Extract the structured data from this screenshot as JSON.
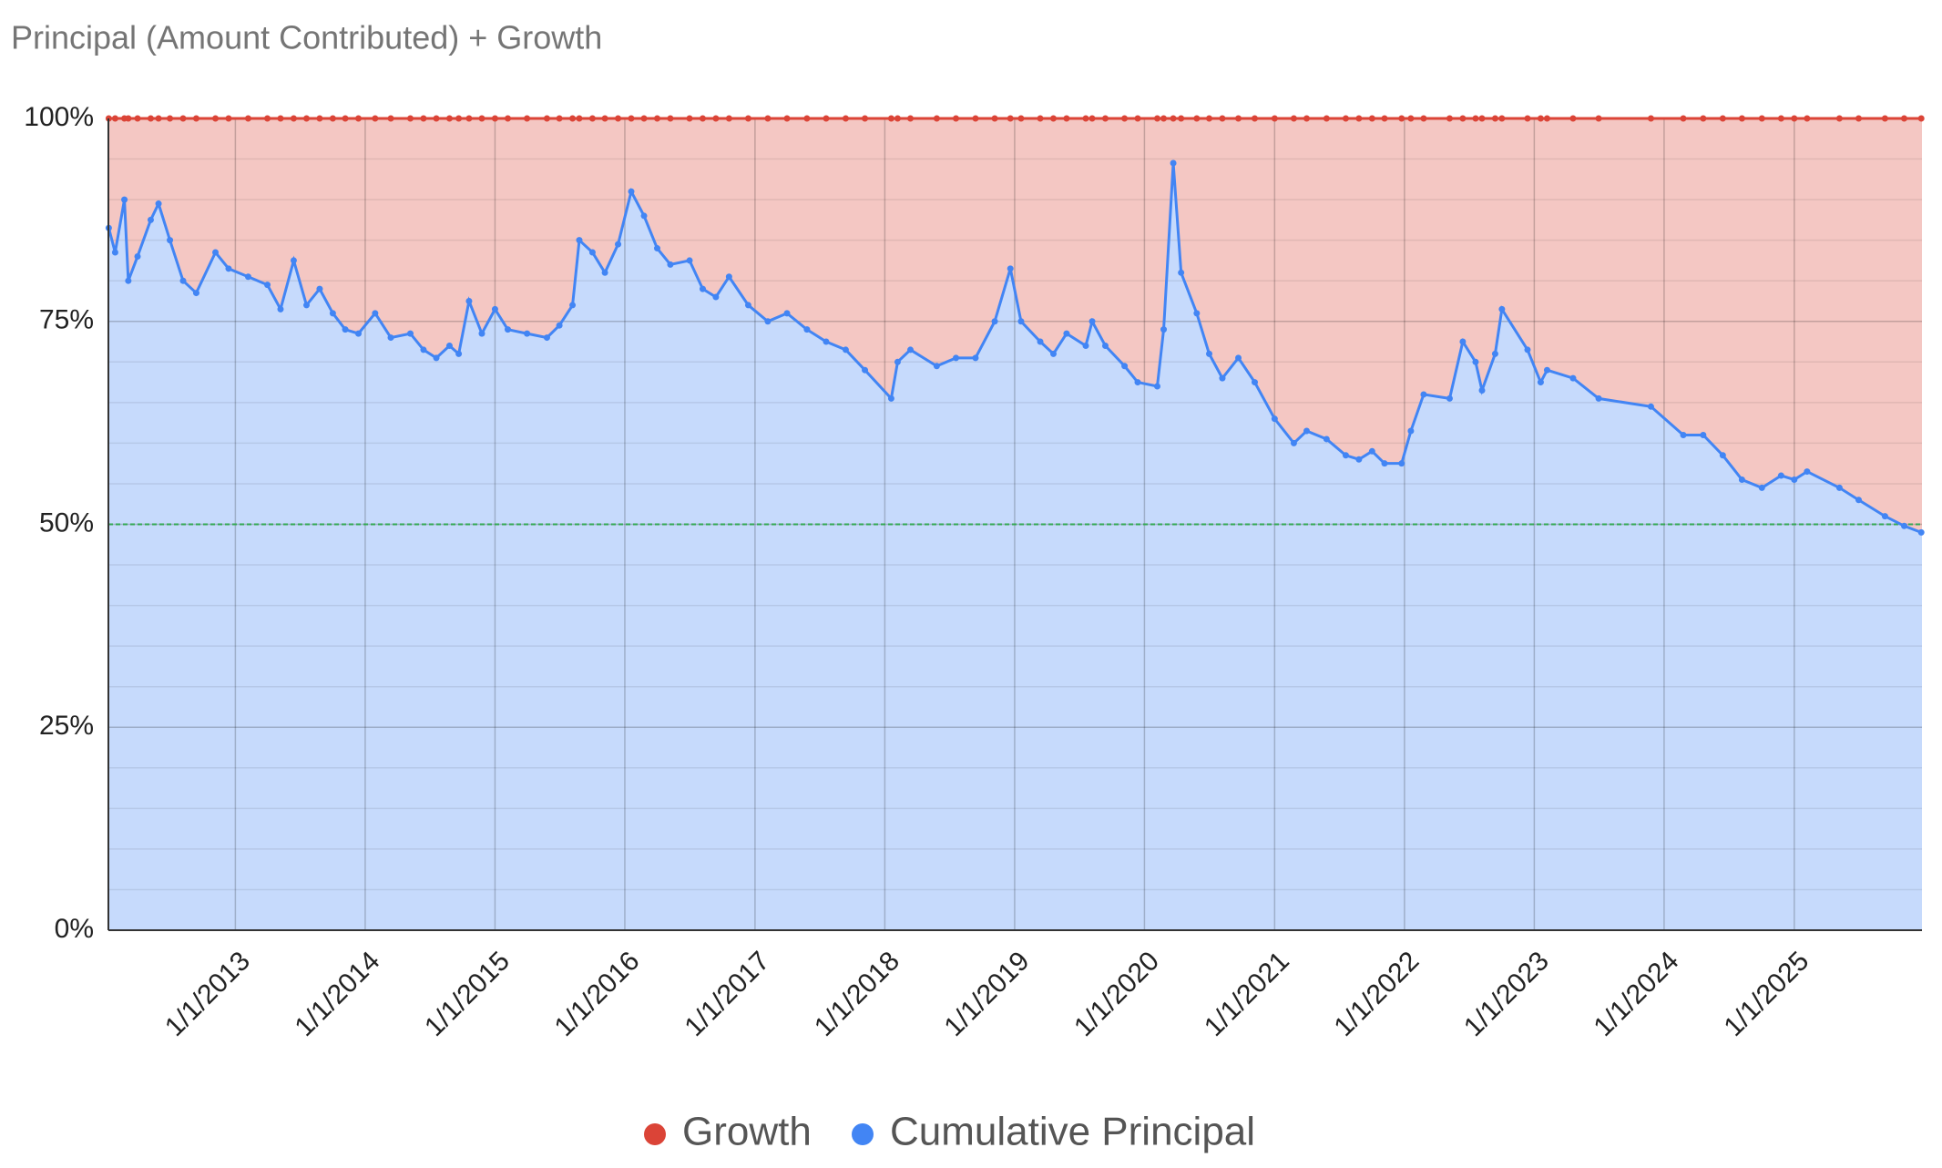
{
  "chart_data": {
    "type": "area",
    "stacked": "percent",
    "title": "Principal (Amount Contributed) + Growth",
    "x": [
      "2012-01-11",
      "2012-01-29",
      "2012-02-24",
      "2012-03-06",
      "2012-04-01",
      "2012-05-08",
      "2012-05-30",
      "2012-07-01",
      "2012-08-07",
      "2012-09-13",
      "2012-11-06",
      "2012-12-13",
      "2013-02-06",
      "2013-04-01",
      "2013-05-08",
      "2013-06-14",
      "2013-07-20",
      "2013-08-26",
      "2013-10-02",
      "2013-11-06",
      "2013-12-13",
      "2014-01-29",
      "2014-03-14",
      "2014-05-08",
      "2014-06-14",
      "2014-07-20",
      "2014-08-26",
      "2014-09-21",
      "2014-10-20",
      "2014-11-25",
      "2015-01-01",
      "2015-02-06",
      "2015-04-01",
      "2015-05-27",
      "2015-07-01",
      "2015-08-07",
      "2015-08-26",
      "2015-10-02",
      "2015-11-06",
      "2015-12-13",
      "2016-01-19",
      "2016-02-24",
      "2016-04-01",
      "2016-05-08",
      "2016-07-01",
      "2016-08-07",
      "2016-09-13",
      "2016-10-20",
      "2016-12-13",
      "2017-02-06",
      "2017-04-01",
      "2017-05-27",
      "2017-07-20",
      "2017-09-13",
      "2017-11-06",
      "2018-01-19",
      "2018-02-06",
      "2018-03-14",
      "2018-05-27",
      "2018-07-20",
      "2018-09-13",
      "2018-11-06",
      "2018-12-20",
      "2019-01-19",
      "2019-03-14",
      "2019-04-20",
      "2019-05-27",
      "2019-07-20",
      "2019-08-07",
      "2019-09-13",
      "2019-11-06",
      "2019-12-13",
      "2020-02-06",
      "2020-02-24",
      "2020-03-22",
      "2020-04-13",
      "2020-05-27",
      "2020-07-01",
      "2020-08-07",
      "2020-09-21",
      "2020-11-06",
      "2021-01-01",
      "2021-02-24",
      "2021-04-01",
      "2021-05-27",
      "2021-07-20",
      "2021-08-26",
      "2021-10-02",
      "2021-11-06",
      "2021-12-24",
      "2022-01-19",
      "2022-02-24",
      "2022-05-08",
      "2022-06-14",
      "2022-07-20",
      "2022-08-07",
      "2022-09-13",
      "2022-10-02",
      "2022-12-13",
      "2023-01-19",
      "2023-02-06",
      "2023-04-20",
      "2023-07-01",
      "2023-11-25",
      "2024-02-24",
      "2024-04-20",
      "2024-06-14",
      "2024-08-07",
      "2024-10-02",
      "2024-11-25",
      "2025-01-01",
      "2025-02-06",
      "2025-05-08",
      "2025-07-01",
      "2025-09-13",
      "2025-11-06",
      "2025-12-24"
    ],
    "series": [
      {
        "name": "Growth",
        "color": "#db4437",
        "fill": "#f4c7c3",
        "values": [
          13.5,
          16.5,
          10,
          20,
          17,
          12.5,
          10.5,
          15,
          20,
          21.5,
          16.5,
          18.5,
          19.5,
          20.5,
          23.5,
          17.5,
          23,
          21,
          24,
          26,
          26.5,
          24,
          27,
          26.5,
          28.5,
          29.5,
          28,
          29,
          22.5,
          26.5,
          23.5,
          26,
          26.5,
          27,
          25.5,
          23,
          15,
          16.5,
          19,
          15.5,
          9,
          12,
          16,
          18,
          17.5,
          21,
          22,
          19.5,
          23,
          25,
          24,
          26,
          27.5,
          28.5,
          31,
          34.5,
          30,
          28.5,
          30.5,
          29.5,
          29.5,
          25,
          18.5,
          25,
          27.5,
          29,
          26.5,
          28,
          25,
          28,
          30.5,
          32.5,
          33,
          26,
          5.5,
          19,
          24,
          29,
          32,
          29.5,
          32.5,
          37,
          40,
          38.5,
          39.5,
          41.5,
          42,
          41,
          42.5,
          42.5,
          38.5,
          34,
          34.5,
          27.5,
          30,
          33.5,
          29,
          23.5,
          28.5,
          32.5,
          31,
          32,
          34.5,
          35.5,
          39,
          39,
          41.5,
          44.5,
          45.5,
          44,
          44.5,
          43.5,
          45.5,
          47,
          49,
          50.2,
          51
        ]
      },
      {
        "name": "Cumulative Principal",
        "color": "#4285f4",
        "fill": "#c6dafc",
        "values": [
          86.5,
          83.5,
          90,
          80,
          83,
          87.5,
          89.5,
          85,
          80,
          78.5,
          83.5,
          81.5,
          80.5,
          79.5,
          76.5,
          82.5,
          77,
          79,
          76,
          74,
          73.5,
          76,
          73,
          73.5,
          71.5,
          70.5,
          72,
          71,
          77.5,
          73.5,
          76.5,
          74,
          73.5,
          73,
          74.5,
          77,
          85,
          83.5,
          81,
          84.5,
          91,
          88,
          84,
          82,
          82.5,
          79,
          78,
          80.5,
          77,
          75,
          76,
          74,
          72.5,
          71.5,
          69,
          65.5,
          70,
          71.5,
          69.5,
          70.5,
          70.5,
          75,
          81.5,
          75,
          72.5,
          71,
          73.5,
          72,
          75,
          72,
          69.5,
          67.5,
          67,
          74,
          94.5,
          81,
          76,
          71,
          68,
          70.5,
          67.5,
          63,
          60,
          61.5,
          60.5,
          58.5,
          58,
          59,
          57.5,
          57.5,
          61.5,
          66,
          65.5,
          72.5,
          70,
          66.5,
          71,
          76.5,
          71.5,
          67.5,
          69,
          68,
          65.5,
          64.5,
          61,
          61,
          58.5,
          55.5,
          54.5,
          56,
          55.5,
          56.5,
          54.5,
          53,
          51,
          49.8,
          49
        ]
      }
    ],
    "xlim": [
      "2012-01-10",
      "2025-12-26"
    ],
    "xticks": [
      {
        "value": "2013-01-01",
        "label": "1/1/2013"
      },
      {
        "value": "2014-01-01",
        "label": "1/1/2014"
      },
      {
        "value": "2015-01-01",
        "label": "1/1/2015"
      },
      {
        "value": "2016-01-01",
        "label": "1/1/2016"
      },
      {
        "value": "2017-01-01",
        "label": "1/1/2017"
      },
      {
        "value": "2018-01-01",
        "label": "1/1/2018"
      },
      {
        "value": "2019-01-01",
        "label": "1/1/2019"
      },
      {
        "value": "2020-01-01",
        "label": "1/1/2020"
      },
      {
        "value": "2021-01-01",
        "label": "1/1/2021"
      },
      {
        "value": "2022-01-01",
        "label": "1/1/2022"
      },
      {
        "value": "2023-01-01",
        "label": "1/1/2023"
      },
      {
        "value": "2024-01-01",
        "label": "1/1/2024"
      },
      {
        "value": "2025-01-01",
        "label": "1/1/2025"
      }
    ],
    "ylim": [
      0,
      100
    ],
    "yticks": [
      {
        "value": 0,
        "label": "0%"
      },
      {
        "value": 25,
        "label": "25%"
      },
      {
        "value": 50,
        "label": "50%"
      },
      {
        "value": 75,
        "label": "75%"
      },
      {
        "value": 100,
        "label": "100%"
      }
    ],
    "yminorticks": [
      5,
      10,
      15,
      20,
      30,
      35,
      40,
      45,
      55,
      60,
      65,
      70,
      80,
      85,
      90,
      95
    ],
    "grid": true,
    "markers": true,
    "reference_line": {
      "value": 50,
      "color": "#34a853"
    },
    "legend": "bottom"
  }
}
